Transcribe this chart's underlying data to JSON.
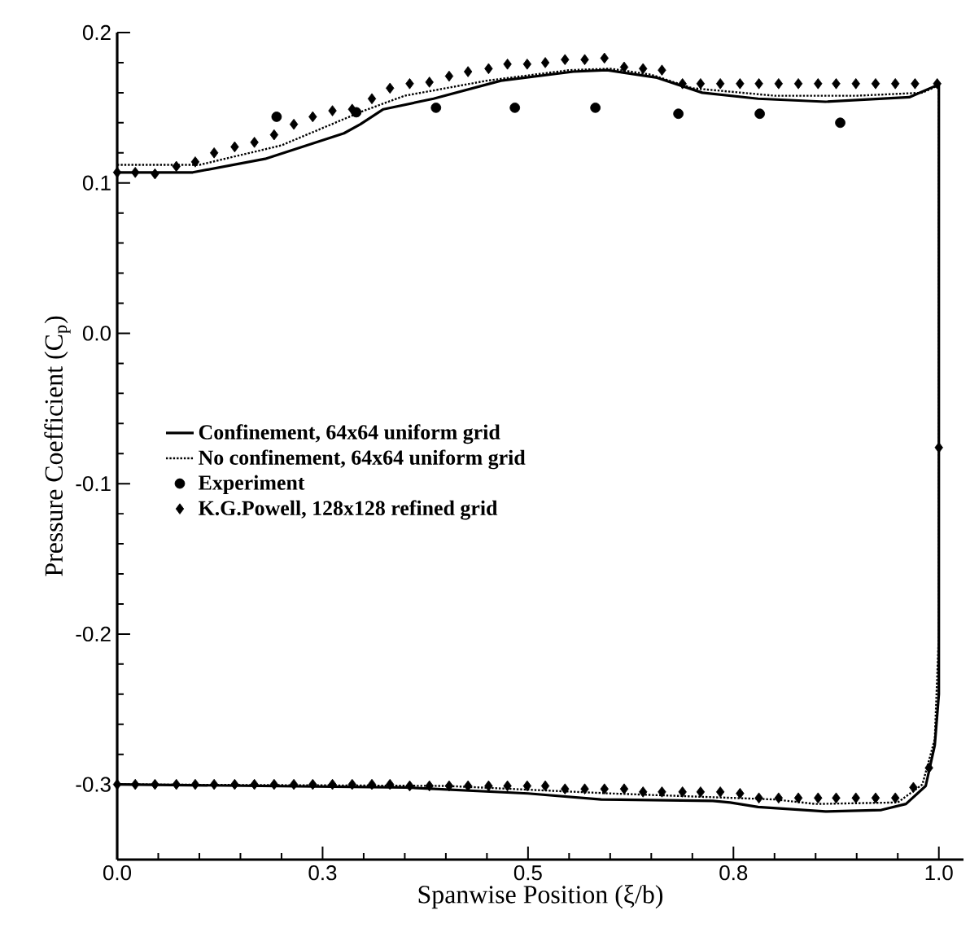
{
  "chart_data": {
    "type": "line",
    "xlabel": "Spanwise Position (ξ/b)",
    "ylabel": "Pressure Coefficient (C$_{p}$)",
    "xlim": [
      0,
      1.03
    ],
    "ylim": [
      -0.35,
      0.2
    ],
    "xticks": [
      {
        "value": 0,
        "label": "0.0"
      },
      {
        "value": 0.25,
        "label": "0.3"
      },
      {
        "value": 0.5,
        "label": "0.5"
      },
      {
        "value": 0.75,
        "label": "0.8"
      },
      {
        "value": 1,
        "label": "1.0"
      }
    ],
    "yticks": [
      {
        "value": -0.3,
        "label": "-0.3"
      },
      {
        "value": -0.2,
        "label": "-0.2"
      },
      {
        "value": -0.1,
        "label": "-0.1"
      },
      {
        "value": 0,
        "label": "0.0"
      },
      {
        "value": 0.1,
        "label": "0.1"
      },
      {
        "value": 0.2,
        "label": "0.2"
      }
    ],
    "legend": "left",
    "series": [
      {
        "name": "Confinement, 64x64 uniform grid",
        "color": "#000000",
        "line_style": "solid",
        "marker": "none",
        "x": [
          0,
          0.092,
          0.18,
          0.276,
          0.296,
          0.324,
          0.385,
          0.467,
          0.555,
          0.596,
          0.657,
          0.712,
          0.78,
          0.862,
          0.964,
          0.998,
          1.0,
          1.0,
          0.995,
          0.984,
          0.96,
          0.93,
          0.862,
          0.78,
          0.746,
          0.725,
          0.589,
          0.5,
          0.351,
          0
        ],
        "values": [
          0.107,
          0.107,
          0.116,
          0.133,
          0.139,
          0.149,
          0.156,
          0.168,
          0.174,
          0.175,
          0.17,
          0.16,
          0.156,
          0.154,
          0.157,
          0.165,
          0.165,
          -0.24,
          -0.274,
          -0.301,
          -0.313,
          -0.317,
          -0.318,
          -0.315,
          -0.312,
          -0.311,
          -0.31,
          -0.306,
          -0.302,
          -0.3
        ]
      },
      {
        "name": "No confinement, 64x64 uniform grid",
        "color": "#000000",
        "line_style": "dotted",
        "marker": "none",
        "x": [
          0,
          0.1,
          0.2,
          0.3,
          0.35,
          0.45,
          0.55,
          0.6,
          0.65,
          0.7,
          0.8,
          0.9,
          0.98,
          1.0,
          1.0,
          0.995,
          0.98,
          0.95,
          0.85,
          0.8,
          0.6,
          0.4,
          0
        ],
        "values": [
          0.112,
          0.112,
          0.125,
          0.148,
          0.158,
          0.168,
          0.175,
          0.176,
          0.172,
          0.163,
          0.158,
          0.158,
          0.16,
          0.165,
          -0.2,
          -0.27,
          -0.3,
          -0.312,
          -0.313,
          -0.31,
          -0.306,
          -0.301,
          -0.3
        ]
      },
      {
        "name": "Experiment",
        "type": "scatter",
        "color": "#000000",
        "marker": "circle",
        "x": [
          0.194,
          0.291,
          0.388,
          0.484,
          0.582,
          0.683,
          0.782,
          0.88
        ],
        "values": [
          0.144,
          0.147,
          0.15,
          0.15,
          0.15,
          0.146,
          0.146,
          0.14
        ]
      },
      {
        "name": "K.G.Powell, 128x128 refined grid",
        "type": "scatter",
        "color": "#000000",
        "marker": "diamond",
        "x": [
          0,
          0.022,
          0.046,
          0.072,
          0.095,
          0.118,
          0.143,
          0.167,
          0.191,
          0.215,
          0.238,
          0.262,
          0.286,
          0.31,
          0.332,
          0.356,
          0.38,
          0.404,
          0.427,
          0.452,
          0.475,
          0.499,
          0.521,
          0.545,
          0.569,
          0.593,
          0.617,
          0.64,
          0.663,
          0.688,
          0.71,
          0.734,
          0.758,
          0.781,
          0.805,
          0.829,
          0.853,
          0.875,
          0.899,
          0.923,
          0.947,
          0.971,
          0.998,
          1.0,
          0,
          0.022,
          0.046,
          0.072,
          0.095,
          0.118,
          0.143,
          0.167,
          0.191,
          0.215,
          0.238,
          0.262,
          0.286,
          0.31,
          0.332,
          0.356,
          0.38,
          0.404,
          0.427,
          0.452,
          0.475,
          0.499,
          0.521,
          0.545,
          0.569,
          0.593,
          0.617,
          0.64,
          0.663,
          0.688,
          0.71,
          0.734,
          0.758,
          0.781,
          0.805,
          0.829,
          0.853,
          0.875,
          0.899,
          0.923,
          0.947,
          0.969,
          0.988
        ],
        "values": [
          0.107,
          0.107,
          0.106,
          0.111,
          0.114,
          0.12,
          0.124,
          0.127,
          0.132,
          0.139,
          0.144,
          0.148,
          0.149,
          0.156,
          0.163,
          0.166,
          0.167,
          0.171,
          0.174,
          0.176,
          0.179,
          0.179,
          0.18,
          0.182,
          0.182,
          0.183,
          0.177,
          0.176,
          0.175,
          0.166,
          0.166,
          0.166,
          0.166,
          0.166,
          0.166,
          0.166,
          0.166,
          0.166,
          0.166,
          0.166,
          0.166,
          0.166,
          0.166,
          -0.076,
          -0.3,
          -0.3,
          -0.3,
          -0.3,
          -0.3,
          -0.3,
          -0.3,
          -0.3,
          -0.3,
          -0.3,
          -0.3,
          -0.3,
          -0.3,
          -0.3,
          -0.3,
          -0.301,
          -0.301,
          -0.301,
          -0.301,
          -0.301,
          -0.301,
          -0.301,
          -0.301,
          -0.303,
          -0.303,
          -0.303,
          -0.303,
          -0.305,
          -0.305,
          -0.305,
          -0.305,
          -0.305,
          -0.306,
          -0.309,
          -0.309,
          -0.309,
          -0.309,
          -0.309,
          -0.309,
          -0.309,
          -0.309,
          -0.302,
          -0.289
        ]
      }
    ]
  }
}
